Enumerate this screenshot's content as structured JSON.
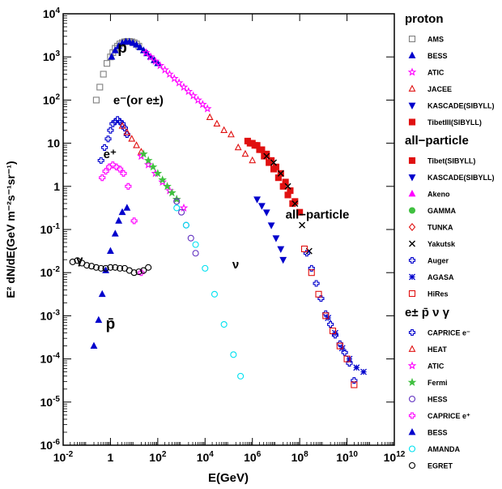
{
  "chart_data": {
    "type": "scatter",
    "xlabel": "E(GeV)",
    "ylabel": "E² dN/dE(GeV m⁻²s⁻¹sr⁻¹)",
    "xlim_exp": [
      -2,
      12
    ],
    "ylim_exp": [
      -6,
      4
    ],
    "log_x": true,
    "log_y": true,
    "x_ticks": [
      {
        "exp": -2,
        "base": "10",
        "sup": "-2"
      },
      {
        "exp": 0,
        "base": "1",
        "sup": ""
      },
      {
        "exp": 2,
        "base": "10",
        "sup": "2"
      },
      {
        "exp": 4,
        "base": "10",
        "sup": "4"
      },
      {
        "exp": 6,
        "base": "10",
        "sup": "6"
      },
      {
        "exp": 8,
        "base": "10",
        "sup": "8"
      },
      {
        "exp": 10,
        "base": "10",
        "sup": "10"
      },
      {
        "exp": 12,
        "base": "10",
        "sup": "12"
      }
    ],
    "y_ticks": [
      {
        "exp": 4,
        "base": "10",
        "sup": "4"
      },
      {
        "exp": 3,
        "base": "10",
        "sup": "3"
      },
      {
        "exp": 2,
        "base": "10",
        "sup": "2"
      },
      {
        "exp": 1,
        "base": "10",
        "sup": ""
      },
      {
        "exp": 0,
        "base": "1",
        "sup": ""
      },
      {
        "exp": -1,
        "base": "10",
        "sup": "-1"
      },
      {
        "exp": -2,
        "base": "10",
        "sup": "-2"
      },
      {
        "exp": -3,
        "base": "10",
        "sup": "-3"
      },
      {
        "exp": -4,
        "base": "10",
        "sup": "-4"
      },
      {
        "exp": -5,
        "base": "10",
        "sup": "-5"
      },
      {
        "exp": -6,
        "base": "10",
        "sup": "-6"
      }
    ],
    "annotations": [
      {
        "text": "p",
        "x": 0.3,
        "y": 3.1
      },
      {
        "text": "e⁻(or e±)",
        "x": 0.12,
        "y": 1.9
      },
      {
        "text": "e⁺",
        "x": -0.3,
        "y": 0.65
      },
      {
        "text": "γ",
        "x": -1.45,
        "y": -1.8
      },
      {
        "text": "ν",
        "x": 5.15,
        "y": -1.9
      },
      {
        "text": "p̄",
        "x": -0.2,
        "y": -3.3
      },
      {
        "text": "all−particle",
        "x": 7.4,
        "y": -0.75
      }
    ],
    "legend_groups": [
      {
        "title": "proton",
        "items": [
          {
            "label": "AMS",
            "marker": "square-open",
            "color": "#808080"
          },
          {
            "label": "BESS",
            "marker": "triangle-up",
            "color": "#0000cc"
          },
          {
            "label": "ATIC",
            "marker": "star-open",
            "color": "#ff00ff"
          },
          {
            "label": "JACEE",
            "marker": "triangle-up-open",
            "color": "#e01010"
          },
          {
            "label": "KASCADE(SIBYLL)",
            "marker": "triangle-down",
            "color": "#0000cc"
          },
          {
            "label": "TibetIII(SIBYLL)",
            "marker": "square",
            "color": "#e01010"
          }
        ]
      },
      {
        "title": "all−particle",
        "items": [
          {
            "label": "Tibet(SIBYLL)",
            "marker": "square",
            "color": "#e01010"
          },
          {
            "label": "KASCADE(SIBYLL)",
            "marker": "triangle-down",
            "color": "#0000cc"
          },
          {
            "label": "Akeno",
            "marker": "triangle-up",
            "color": "#ff00ff"
          },
          {
            "label": "GAMMA",
            "marker": "circle",
            "color": "#40c040"
          },
          {
            "label": "TUNKA",
            "marker": "diamond-open",
            "color": "#e01010"
          },
          {
            "label": "Yakutsk",
            "marker": "cross-x",
            "color": "#000000"
          },
          {
            "label": "Auger",
            "marker": "plus-open",
            "color": "#0000cc"
          },
          {
            "label": "AGASA",
            "marker": "asterisk",
            "color": "#0000cc"
          },
          {
            "label": "HiRes",
            "marker": "square-open",
            "color": "#e01010"
          }
        ]
      },
      {
        "title": "e± p̄ ν γ",
        "items": [
          {
            "label": "CAPRICE e⁻",
            "marker": "plus-open",
            "color": "#0000cc"
          },
          {
            "label": "HEAT",
            "marker": "triangle-up-open",
            "color": "#e01010"
          },
          {
            "label": "ATIC",
            "marker": "star-open",
            "color": "#ff00ff"
          },
          {
            "label": "Fermi",
            "marker": "star",
            "color": "#40c040"
          },
          {
            "label": "HESS",
            "marker": "circle-open",
            "color": "#6030c0"
          },
          {
            "label": "CAPRICE e⁺",
            "marker": "plus-open",
            "color": "#ff00ff"
          },
          {
            "label": "BESS",
            "marker": "triangle-up",
            "color": "#0000cc"
          },
          {
            "label": "AMANDA",
            "marker": "circle-open",
            "color": "#00e0f0"
          },
          {
            "label": "EGRET",
            "marker": "circle-open",
            "color": "#000000"
          }
        ]
      }
    ],
    "series": [
      {
        "dataset": "AMS proton",
        "marker": "square-open",
        "color": "#808080",
        "points": [
          [
            -0.6,
            2.0
          ],
          [
            -0.45,
            2.3
          ],
          [
            -0.3,
            2.6
          ],
          [
            -0.15,
            2.85
          ],
          [
            0.0,
            3.0
          ],
          [
            0.1,
            3.1
          ],
          [
            0.2,
            3.2
          ],
          [
            0.3,
            3.25
          ],
          [
            0.4,
            3.3
          ],
          [
            0.5,
            3.33
          ],
          [
            0.6,
            3.35
          ],
          [
            0.7,
            3.36
          ],
          [
            0.8,
            3.36
          ],
          [
            0.9,
            3.35
          ],
          [
            1.0,
            3.33
          ],
          [
            1.1,
            3.3
          ],
          [
            1.2,
            3.25
          ]
        ]
      },
      {
        "dataset": "BESS proton",
        "marker": "triangle-up",
        "color": "#0000cc",
        "points": [
          [
            0.05,
            3.0
          ],
          [
            0.2,
            3.15
          ],
          [
            0.35,
            3.25
          ],
          [
            0.5,
            3.32
          ],
          [
            0.65,
            3.35
          ],
          [
            0.8,
            3.35
          ],
          [
            0.95,
            3.32
          ],
          [
            1.1,
            3.28
          ],
          [
            1.25,
            3.22
          ],
          [
            1.4,
            3.15
          ],
          [
            1.55,
            3.08
          ],
          [
            1.7,
            3.0
          ],
          [
            1.85,
            2.92
          ],
          [
            2.0,
            2.85
          ]
        ]
      },
      {
        "dataset": "ATIC proton",
        "marker": "star-open",
        "color": "#ff00ff",
        "points": [
          [
            1.5,
            3.1
          ],
          [
            1.7,
            3.0
          ],
          [
            1.9,
            2.9
          ],
          [
            2.1,
            2.8
          ],
          [
            2.3,
            2.7
          ],
          [
            2.5,
            2.6
          ],
          [
            2.7,
            2.5
          ],
          [
            2.9,
            2.4
          ],
          [
            3.1,
            2.3
          ],
          [
            3.3,
            2.2
          ],
          [
            3.5,
            2.1
          ],
          [
            3.7,
            2.0
          ],
          [
            3.9,
            1.9
          ],
          [
            4.1,
            1.8
          ]
        ]
      },
      {
        "dataset": "JACEE proton",
        "marker": "triangle-up-open",
        "color": "#e01010",
        "points": [
          [
            4.2,
            1.6
          ],
          [
            4.5,
            1.45
          ],
          [
            4.8,
            1.3
          ],
          [
            5.1,
            1.2
          ],
          [
            5.4,
            0.9
          ],
          [
            5.7,
            0.75
          ],
          [
            6.0,
            0.6
          ]
        ]
      },
      {
        "dataset": "KASCADE proton",
        "marker": "triangle-down",
        "color": "#0000cc",
        "points": [
          [
            6.2,
            -0.3
          ],
          [
            6.4,
            -0.45
          ],
          [
            6.6,
            -0.6
          ],
          [
            6.8,
            -0.9
          ],
          [
            7.0,
            -1.2
          ],
          [
            7.2,
            -1.45
          ],
          [
            7.3,
            -1.7
          ]
        ]
      },
      {
        "dataset": "TibetIII proton",
        "marker": "square",
        "color": "#e01010",
        "points": [
          [
            5.9,
            1.0
          ],
          [
            6.1,
            0.95
          ],
          [
            6.3,
            0.85
          ],
          [
            6.5,
            0.7
          ],
          [
            6.7,
            0.55
          ],
          [
            6.9,
            0.4
          ],
          [
            7.1,
            0.2
          ],
          [
            7.3,
            0.0
          ],
          [
            7.5,
            -0.2
          ],
          [
            7.7,
            -0.4
          ]
        ]
      },
      {
        "dataset": "Tibet all-particle",
        "marker": "square",
        "color": "#e01010",
        "points": [
          [
            5.8,
            1.05
          ],
          [
            6.0,
            1.0
          ],
          [
            6.2,
            0.95
          ],
          [
            6.4,
            0.85
          ],
          [
            6.6,
            0.75
          ],
          [
            6.8,
            0.6
          ],
          [
            7.0,
            0.45
          ],
          [
            7.2,
            0.3
          ],
          [
            7.4,
            0.1
          ],
          [
            7.6,
            -0.1
          ],
          [
            7.8,
            -0.35
          ],
          [
            8.0,
            -0.6
          ]
        ]
      },
      {
        "dataset": "Yakutsk all-particle",
        "marker": "cross-x",
        "color": "#000000",
        "points": [
          [
            6.6,
            0.7
          ],
          [
            6.9,
            0.55
          ],
          [
            7.2,
            0.3
          ],
          [
            7.5,
            0.0
          ],
          [
            7.8,
            -0.4
          ],
          [
            8.1,
            -0.9
          ],
          [
            8.4,
            -1.5
          ]
        ]
      },
      {
        "dataset": "Auger all-particle",
        "marker": "plus-open",
        "color": "#0000cc",
        "points": [
          [
            8.3,
            -1.55
          ],
          [
            8.5,
            -1.9
          ],
          [
            8.7,
            -2.25
          ],
          [
            8.9,
            -2.6
          ],
          [
            9.1,
            -2.95
          ],
          [
            9.3,
            -3.2
          ],
          [
            9.5,
            -3.45
          ],
          [
            9.7,
            -3.65
          ],
          [
            9.9,
            -3.85
          ],
          [
            10.1,
            -4.1
          ],
          [
            10.3,
            -4.5
          ]
        ]
      },
      {
        "dataset": "AGASA all-particle",
        "marker": "asterisk",
        "color": "#0000cc",
        "points": [
          [
            9.2,
            -3.05
          ],
          [
            9.5,
            -3.4
          ],
          [
            9.8,
            -3.75
          ],
          [
            10.1,
            -4.0
          ],
          [
            10.4,
            -4.2
          ],
          [
            10.7,
            -4.3
          ]
        ]
      },
      {
        "dataset": "HiRes all-particle",
        "marker": "square-open",
        "color": "#e01010",
        "points": [
          [
            8.2,
            -1.45
          ],
          [
            8.5,
            -2.0
          ],
          [
            8.8,
            -2.5
          ],
          [
            9.1,
            -3.0
          ],
          [
            9.4,
            -3.35
          ],
          [
            9.7,
            -3.7
          ],
          [
            10.0,
            -4.0
          ],
          [
            10.3,
            -4.6
          ]
        ]
      },
      {
        "dataset": "CAPRICE e-",
        "marker": "plus-open",
        "color": "#0000cc",
        "points": [
          [
            -0.4,
            0.6
          ],
          [
            -0.25,
            0.9
          ],
          [
            -0.1,
            1.1
          ],
          [
            0.0,
            1.3
          ],
          [
            0.1,
            1.45
          ],
          [
            0.2,
            1.5
          ],
          [
            0.3,
            1.55
          ],
          [
            0.4,
            1.5
          ],
          [
            0.5,
            1.45
          ],
          [
            0.6,
            1.35
          ],
          [
            0.7,
            1.2
          ]
        ]
      },
      {
        "dataset": "HEAT",
        "marker": "triangle-up-open",
        "color": "#e01010",
        "points": [
          [
            0.5,
            1.4
          ],
          [
            0.7,
            1.25
          ],
          [
            0.9,
            1.1
          ],
          [
            1.1,
            0.95
          ],
          [
            1.3,
            0.8
          ]
        ]
      },
      {
        "dataset": "ATIC electrons",
        "marker": "star-open",
        "color": "#ff00ff",
        "points": [
          [
            1.3,
            0.7
          ],
          [
            1.6,
            0.5
          ],
          [
            1.9,
            0.3
          ],
          [
            2.2,
            0.1
          ],
          [
            2.5,
            -0.1
          ],
          [
            2.8,
            -0.3
          ],
          [
            3.1,
            -0.5
          ]
        ]
      },
      {
        "dataset": "Fermi",
        "marker": "star",
        "color": "#40c040",
        "points": [
          [
            1.4,
            0.75
          ],
          [
            1.6,
            0.6
          ],
          [
            1.8,
            0.45
          ],
          [
            2.0,
            0.3
          ],
          [
            2.2,
            0.15
          ],
          [
            2.4,
            0.0
          ],
          [
            2.6,
            -0.15
          ],
          [
            2.8,
            -0.3
          ]
        ]
      },
      {
        "dataset": "HESS",
        "marker": "circle-open",
        "color": "#6030c0",
        "points": [
          [
            2.8,
            -0.35
          ],
          [
            3.0,
            -0.6
          ],
          [
            3.2,
            -0.9
          ],
          [
            3.4,
            -1.2
          ],
          [
            3.6,
            -1.55
          ]
        ]
      },
      {
        "dataset": "CAPRICE e+",
        "marker": "plus-open",
        "color": "#ff00ff",
        "points": [
          [
            -0.35,
            0.2
          ],
          [
            -0.2,
            0.35
          ],
          [
            -0.05,
            0.45
          ],
          [
            0.1,
            0.5
          ],
          [
            0.25,
            0.45
          ],
          [
            0.4,
            0.4
          ],
          [
            0.55,
            0.3
          ],
          [
            0.75,
            0.0
          ],
          [
            1.0,
            -0.8
          ],
          [
            1.3,
            -2.0
          ]
        ]
      },
      {
        "dataset": "BESS antiproton",
        "marker": "triangle-up",
        "color": "#0000cc",
        "points": [
          [
            -0.7,
            -3.7
          ],
          [
            -0.5,
            -3.1
          ],
          [
            -0.35,
            -2.5
          ],
          [
            -0.2,
            -1.95
          ],
          [
            0.0,
            -1.5
          ],
          [
            0.2,
            -1.1
          ],
          [
            0.35,
            -0.8
          ],
          [
            0.5,
            -0.6
          ],
          [
            0.7,
            -0.5
          ]
        ]
      },
      {
        "dataset": "AMANDA",
        "marker": "circle-open",
        "color": "#00e0f0",
        "points": [
          [
            2.8,
            -0.5
          ],
          [
            3.2,
            -0.9
          ],
          [
            3.6,
            -1.35
          ],
          [
            4.0,
            -1.9
          ],
          [
            4.4,
            -2.5
          ],
          [
            4.8,
            -3.2
          ],
          [
            5.2,
            -3.9
          ],
          [
            5.5,
            -4.4
          ]
        ]
      },
      {
        "dataset": "EGRET",
        "marker": "circle-open",
        "color": "#000000",
        "points": [
          [
            -1.6,
            -1.75
          ],
          [
            -1.4,
            -1.72
          ],
          [
            -1.2,
            -1.78
          ],
          [
            -1.0,
            -1.83
          ],
          [
            -0.8,
            -1.85
          ],
          [
            -0.6,
            -1.88
          ],
          [
            -0.4,
            -1.9
          ],
          [
            -0.2,
            -1.9
          ],
          [
            0.0,
            -1.88
          ],
          [
            0.2,
            -1.88
          ],
          [
            0.4,
            -1.9
          ],
          [
            0.6,
            -1.9
          ],
          [
            0.8,
            -1.95
          ],
          [
            1.0,
            -2.0
          ],
          [
            1.2,
            -1.98
          ],
          [
            1.4,
            -1.95
          ],
          [
            1.6,
            -1.88
          ]
        ]
      }
    ]
  }
}
